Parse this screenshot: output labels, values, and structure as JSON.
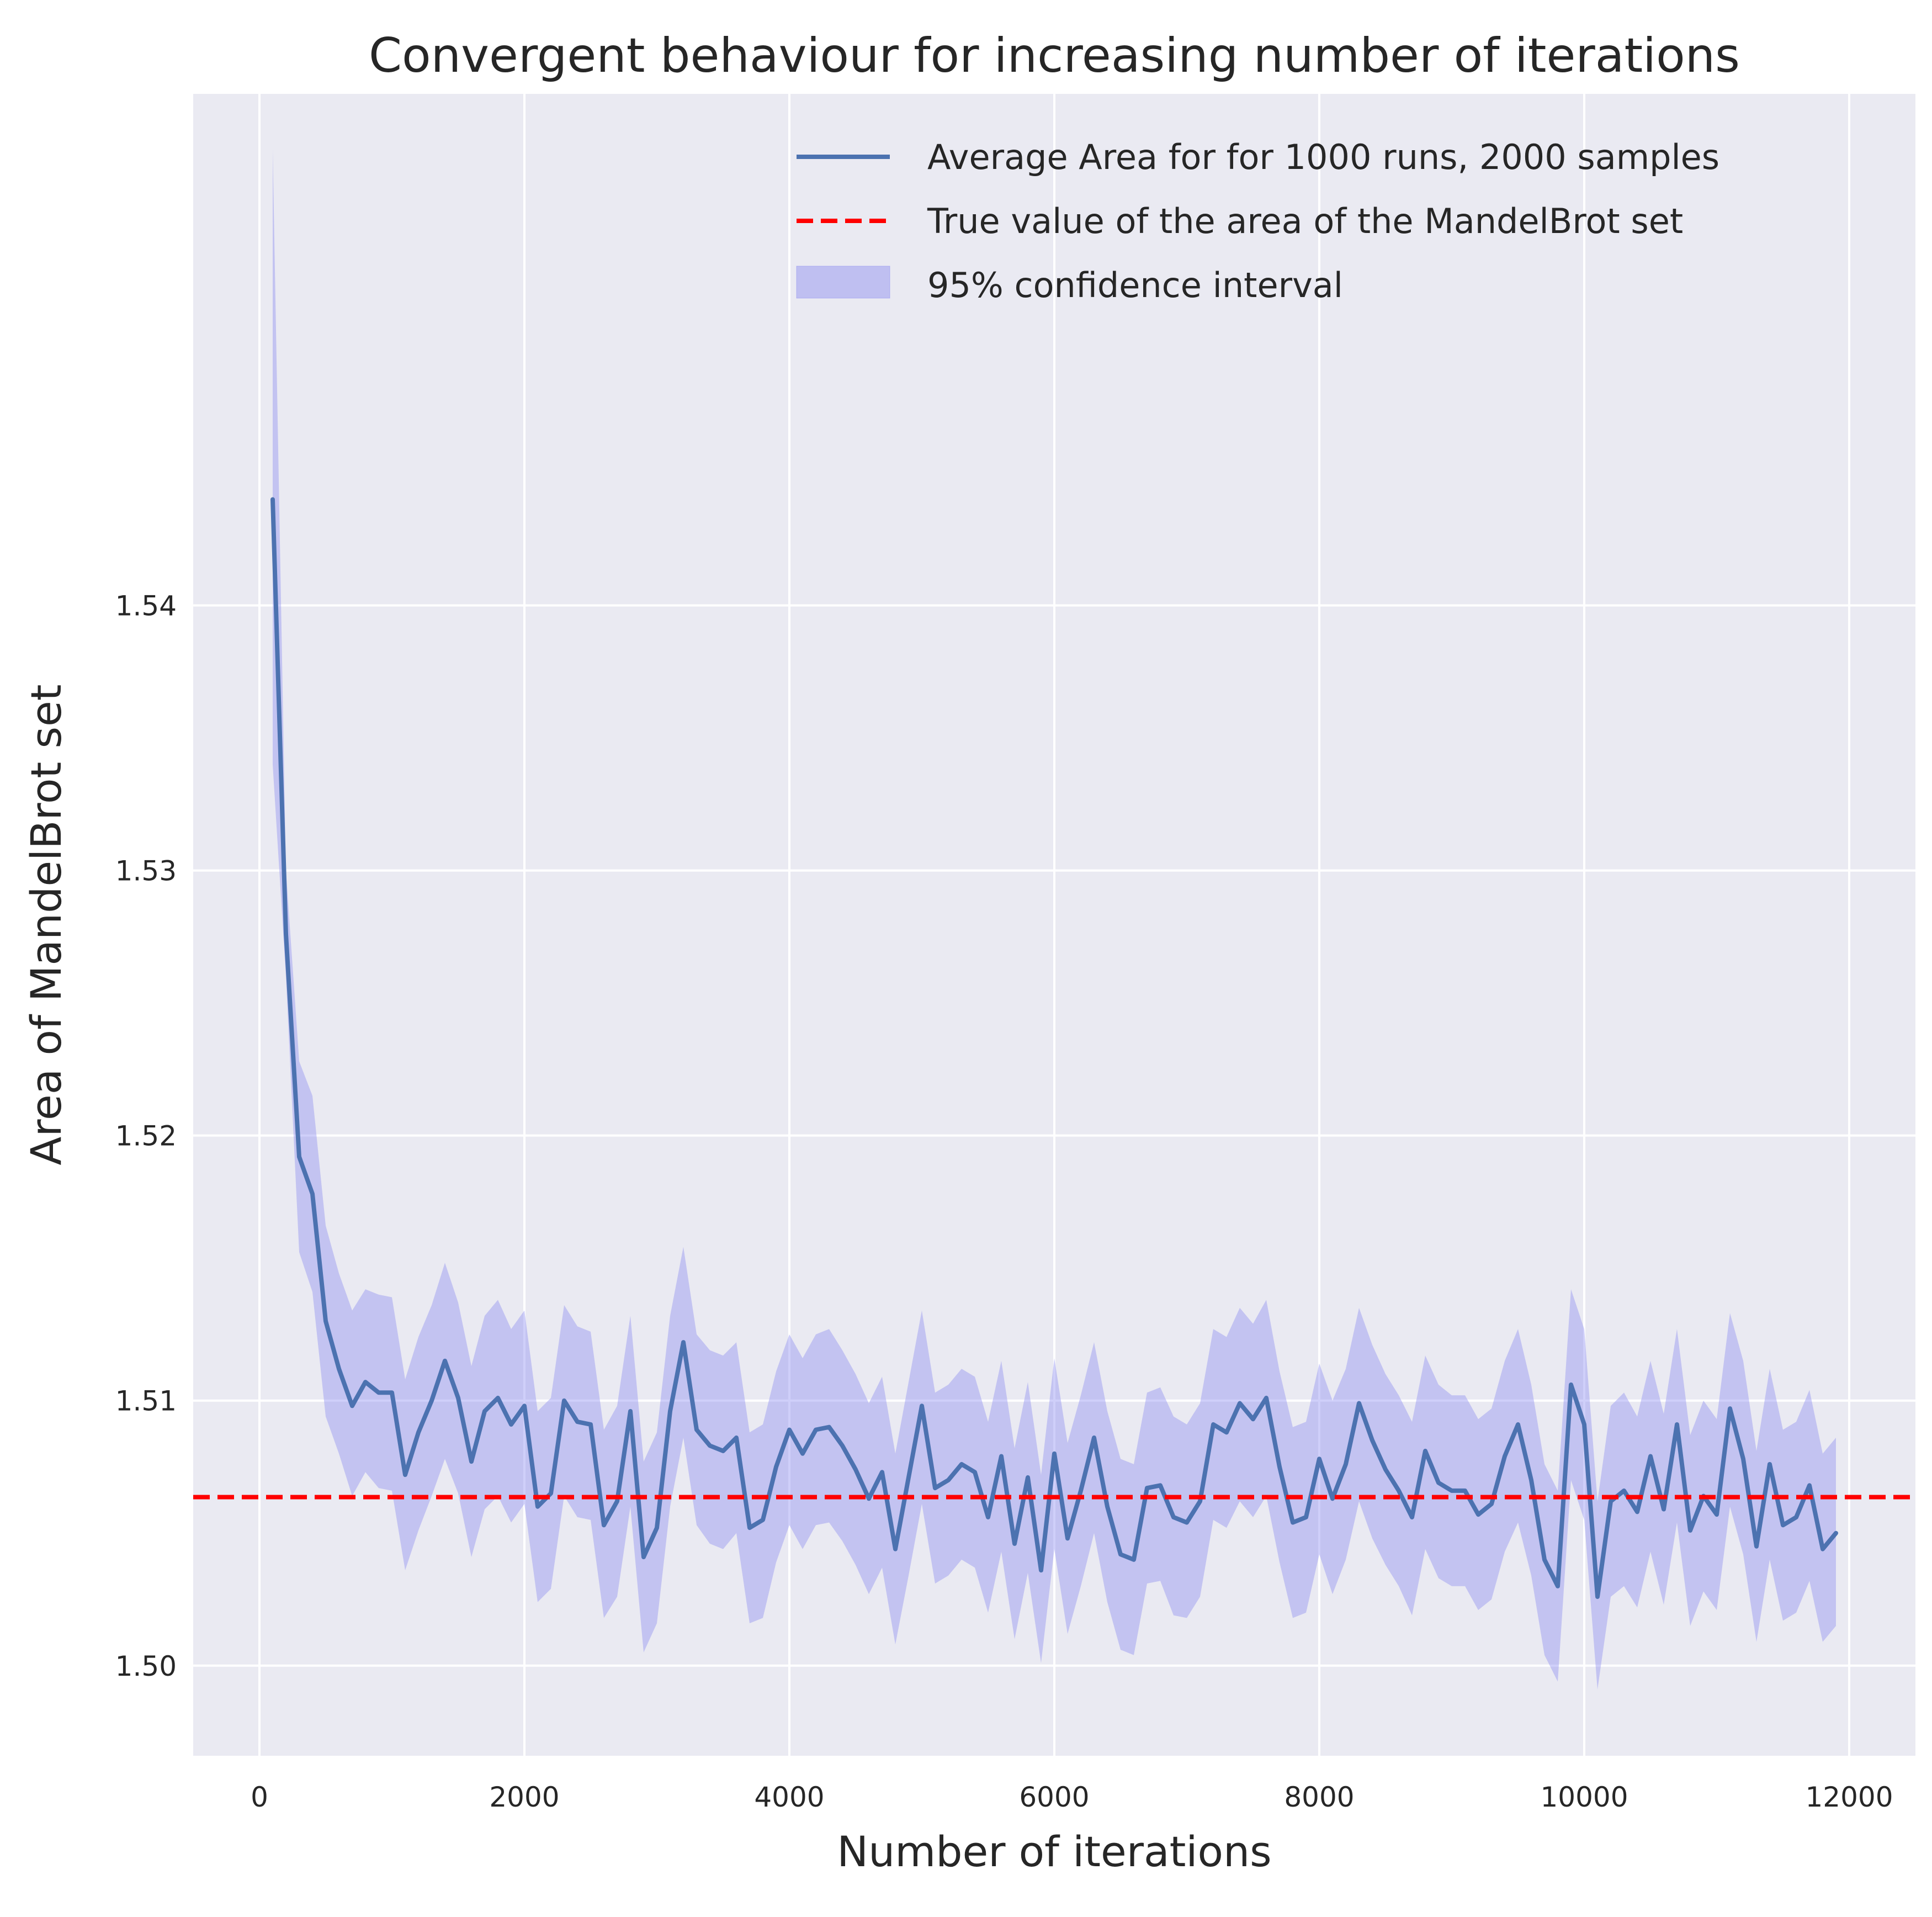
{
  "chart_data": {
    "type": "line",
    "title": "Convergent behaviour for increasing number of iterations",
    "xlabel": "Number of iterations",
    "ylabel": "Area of MandelBrot set",
    "xlim": [
      -500,
      12500
    ],
    "ylim": [
      1.4966,
      1.5593
    ],
    "xticks": [
      0,
      2000,
      4000,
      6000,
      8000,
      10000,
      12000
    ],
    "yticks": [
      1.5,
      1.51,
      1.52,
      1.53,
      1.54
    ],
    "ytick_labels": [
      "1.50",
      "1.51",
      "1.52",
      "1.53",
      "1.54"
    ],
    "grid": true,
    "legend_position": "top-right",
    "x": [
      100,
      200,
      300,
      400,
      500,
      600,
      700,
      800,
      900,
      1000,
      1100,
      1200,
      1300,
      1400,
      1500,
      1600,
      1700,
      1800,
      1900,
      2000,
      2100,
      2200,
      2300,
      2400,
      2500,
      2600,
      2700,
      2800,
      2900,
      3000,
      3100,
      3200,
      3300,
      3400,
      3500,
      3600,
      3700,
      3800,
      3900,
      4000,
      4100,
      4200,
      4300,
      4400,
      4500,
      4600,
      4700,
      4800,
      4900,
      5000,
      5100,
      5200,
      5300,
      5400,
      5500,
      5600,
      5700,
      5800,
      5900,
      6000,
      6100,
      6200,
      6300,
      6400,
      6500,
      6600,
      6700,
      6800,
      6900,
      7000,
      7100,
      7200,
      7300,
      7400,
      7500,
      7600,
      7700,
      7800,
      7900,
      8000,
      8100,
      8200,
      8300,
      8400,
      8500,
      8600,
      8700,
      8800,
      8900,
      9000,
      9100,
      9200,
      9300,
      9400,
      9500,
      9600,
      9700,
      9800,
      9900,
      10000,
      10100,
      10200,
      10300,
      10400,
      10500,
      10600,
      10700,
      10800,
      10900,
      11000,
      11100,
      11200,
      11300,
      11400,
      11500,
      11600,
      11700,
      11800,
      11900
    ],
    "series": [
      {
        "name": "Average Area for for 1000 runs, 2000 samples",
        "color": "#4c72b0",
        "style": "solid",
        "values": [
          1.544,
          1.5276,
          1.5192,
          1.5178,
          1.513,
          1.5112,
          1.5098,
          1.5107,
          1.5103,
          1.5103,
          1.5072,
          1.5088,
          1.51,
          1.5115,
          1.5101,
          1.5077,
          1.5096,
          1.5101,
          1.5091,
          1.5098,
          1.506,
          1.5065,
          1.51,
          1.5092,
          1.5091,
          1.5053,
          1.5062,
          1.5096,
          1.5041,
          1.5052,
          1.5096,
          1.5122,
          1.5089,
          1.5083,
          1.5081,
          1.5086,
          1.5052,
          1.5055,
          1.5075,
          1.5089,
          1.508,
          1.5089,
          1.509,
          1.5083,
          1.5074,
          1.5063,
          1.5073,
          1.5044,
          1.5071,
          1.5098,
          1.5067,
          1.507,
          1.5076,
          1.5073,
          1.5056,
          1.5079,
          1.5046,
          1.5071,
          1.5036,
          1.508,
          1.5048,
          1.5066,
          1.5086,
          1.506,
          1.5042,
          1.504,
          1.5067,
          1.5068,
          1.5056,
          1.5054,
          1.5062,
          1.5091,
          1.5088,
          1.5099,
          1.5093,
          1.5101,
          1.5075,
          1.5054,
          1.5056,
          1.5078,
          1.5063,
          1.5076,
          1.5099,
          1.5085,
          1.5074,
          1.5066,
          1.5056,
          1.5081,
          1.5069,
          1.5066,
          1.5066,
          1.5057,
          1.5061,
          1.5079,
          1.5091,
          1.507,
          1.504,
          1.503,
          1.5106,
          1.5091,
          1.5026,
          1.5062,
          1.5066,
          1.5058,
          1.5079,
          1.5059,
          1.5091,
          1.5051,
          1.5064,
          1.5057,
          1.5097,
          1.5078,
          1.5045,
          1.5076,
          1.5053,
          1.5056,
          1.5068,
          1.5044,
          1.505
        ]
      },
      {
        "name": "True value of the area of the MandelBrot set",
        "color": "#ff0000",
        "style": "dashed",
        "value": 1.50636
      }
    ],
    "confidence_interval": {
      "name": "95% confidence interval",
      "color": "#8c8cf0",
      "lower": [
        1.534,
        1.526,
        1.5156,
        1.5141,
        1.5094,
        1.508,
        1.5064,
        1.5073,
        1.5067,
        1.5066,
        1.5036,
        1.5051,
        1.5064,
        1.5078,
        1.5065,
        1.5041,
        1.5059,
        1.5064,
        1.5054,
        1.5061,
        1.5024,
        1.5029,
        1.5064,
        1.5056,
        1.5055,
        1.5018,
        1.5026,
        1.506,
        1.5005,
        1.5016,
        1.506,
        1.5086,
        1.5053,
        1.5046,
        1.5044,
        1.505,
        1.5016,
        1.5018,
        1.5039,
        1.5053,
        1.5044,
        1.5053,
        1.5054,
        1.5047,
        1.5038,
        1.5027,
        1.5037,
        1.5008,
        1.5034,
        1.5061,
        1.5031,
        1.5034,
        1.504,
        1.5037,
        1.502,
        1.5043,
        1.501,
        1.5035,
        1.5001,
        1.5044,
        1.5012,
        1.503,
        1.505,
        1.5024,
        1.5006,
        1.5004,
        1.5031,
        1.5032,
        1.5019,
        1.5018,
        1.5026,
        1.5055,
        1.5052,
        1.5062,
        1.5056,
        1.5064,
        1.5039,
        1.5018,
        1.502,
        1.5042,
        1.5027,
        1.504,
        1.5062,
        1.5048,
        1.5038,
        1.503,
        1.5019,
        1.5044,
        1.5033,
        1.503,
        1.503,
        1.5021,
        1.5025,
        1.5043,
        1.5054,
        1.5034,
        1.5004,
        1.4994,
        1.507,
        1.5055,
        1.4991,
        1.5026,
        1.503,
        1.5022,
        1.5043,
        1.5023,
        1.5054,
        1.5015,
        1.5028,
        1.5021,
        1.506,
        1.5042,
        1.5009,
        1.504,
        1.5017,
        1.502,
        1.5032,
        1.5009,
        1.5015
      ],
      "upper": [
        1.5572,
        1.53,
        1.5228,
        1.5215,
        1.5166,
        1.5148,
        1.5134,
        1.5142,
        1.514,
        1.5139,
        1.5108,
        1.5124,
        1.5136,
        1.5152,
        1.5137,
        1.5113,
        1.5132,
        1.5138,
        1.5127,
        1.5134,
        1.5096,
        1.5101,
        1.5136,
        1.5128,
        1.5126,
        1.5089,
        1.5098,
        1.5132,
        1.5077,
        1.5088,
        1.5132,
        1.5158,
        1.5125,
        1.5119,
        1.5117,
        1.5122,
        1.5088,
        1.5091,
        1.5111,
        1.5125,
        1.5116,
        1.5125,
        1.5127,
        1.5119,
        1.511,
        1.5099,
        1.5109,
        1.508,
        1.5107,
        1.5134,
        1.5103,
        1.5106,
        1.5112,
        1.5109,
        1.5092,
        1.5115,
        1.5082,
        1.5107,
        1.5072,
        1.5116,
        1.5084,
        1.5102,
        1.5122,
        1.5096,
        1.5078,
        1.5076,
        1.5103,
        1.5105,
        1.5094,
        1.5091,
        1.5099,
        1.5127,
        1.5124,
        1.5135,
        1.5129,
        1.5138,
        1.5111,
        1.509,
        1.5092,
        1.5114,
        1.51,
        1.5112,
        1.5135,
        1.5121,
        1.511,
        1.5102,
        1.5092,
        1.5117,
        1.5106,
        1.5102,
        1.5102,
        1.5093,
        1.5097,
        1.5115,
        1.5127,
        1.5106,
        1.5076,
        1.5066,
        1.5142,
        1.5127,
        1.5062,
        1.5098,
        1.5103,
        1.5094,
        1.5115,
        1.5095,
        1.5127,
        1.5087,
        1.51,
        1.5093,
        1.5133,
        1.5115,
        1.5081,
        1.5112,
        1.5089,
        1.5092,
        1.5104,
        1.508,
        1.5086
      ]
    }
  }
}
